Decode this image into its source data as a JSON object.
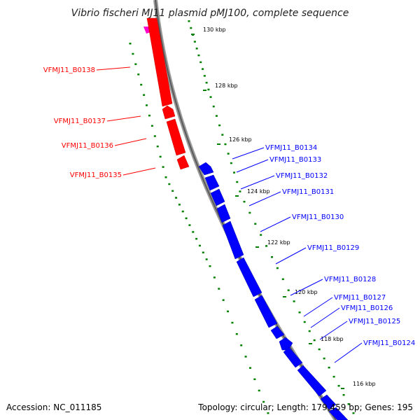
{
  "title": "Vibrio fischeri MJ11 plasmid pMJ100, complete sequence",
  "footer": {
    "accession": "Accession: NC_011185",
    "topology": "Topology: circular; Length: 179,459 bp; Genes: 195"
  },
  "colors": {
    "reverse_genes": "#ff0000",
    "forward_genes": "#0000ff",
    "partial_gene": "#ff00cc",
    "backbone": "#888888",
    "tick_marks": "#008000"
  },
  "kbp_labels": [
    "130 kbp",
    "128 kbp",
    "126 kbp",
    "124 kbp",
    "122 kbp",
    "120 kbp",
    "118 kbp",
    "116 kbp"
  ],
  "reverse_gene_labels": [
    "VFMJ11_B0138",
    "VFMJ11_B0137",
    "VFMJ11_B0136",
    "VFMJ11_B0135"
  ],
  "forward_gene_labels": [
    "VFMJ11_B0134",
    "VFMJ11_B0133",
    "VFMJ11_B0132",
    "VFMJ11_B0131",
    "VFMJ11_B0130",
    "VFMJ11_B0129",
    "VFMJ11_B0128",
    "VFMJ11_B0127",
    "VFMJ11_B0126",
    "VFMJ11_B0125",
    "VFMJ11_B0124"
  ]
}
